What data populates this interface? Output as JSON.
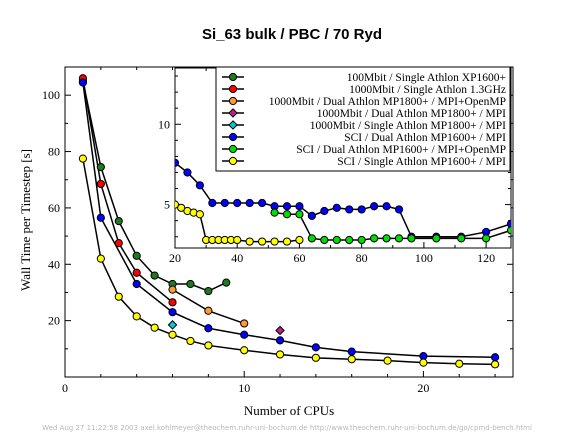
{
  "chart_data": [
    {
      "type": "line",
      "title": "Si_63 bulk / PBC / 70 Ryd",
      "xlabel": "Number of CPUs",
      "ylabel": "Wall Time per Timestep [s]",
      "xlim": [
        0,
        25
      ],
      "ylim": [
        0,
        110
      ],
      "x_ticks": [
        0,
        10,
        20
      ],
      "y_ticks": [
        20,
        40,
        60,
        80,
        100
      ],
      "grid": false,
      "legend_placement": "top-right",
      "series": [
        {
          "name": "100Mbit / Single Athlon XP1600+",
          "color": "#1e7a1e",
          "x": [
            1,
            2,
            3,
            4,
            5,
            6,
            7,
            8,
            9
          ],
          "y": [
            105,
            74.5,
            55.3,
            43,
            36,
            33,
            33,
            30.5,
            33.5
          ]
        },
        {
          "name": "1000Mbit / Single Athlon 1.3GHz",
          "color": "#ff0000",
          "x": [
            1,
            2,
            3,
            4,
            6
          ],
          "y": [
            106,
            68.5,
            47.5,
            37,
            26.5
          ]
        },
        {
          "name": "1000Mbit / Dual Athlon MP1800+ / MPI+OpenMP",
          "color": "#ff9933",
          "x": [
            6,
            8,
            10
          ],
          "y": [
            31,
            23.5,
            19
          ]
        },
        {
          "name": "1000Mbit / Dual Athlon MP1800+ / MPI",
          "color": "#bb2288",
          "x": [
            12
          ],
          "y": [
            16.5
          ]
        },
        {
          "name": "1000Mbit / Single Athlon MP1800+ / MPI",
          "color": "#00cccc",
          "x": [
            6
          ],
          "y": [
            18.5
          ]
        },
        {
          "name": "SCI / Dual Athlon MP1600+ / MPI",
          "color": "#0000ff",
          "x": [
            1,
            2,
            4,
            6,
            8,
            10,
            12,
            14,
            16,
            20,
            24
          ],
          "y": [
            104.5,
            56.5,
            33,
            23,
            17.3,
            15,
            13,
            10.5,
            9,
            7.4,
            7
          ]
        },
        {
          "name": "SCI / Dual Athlon MP1600+ / MPI+OpenMP",
          "color": "#00dd00",
          "x": [],
          "y": []
        },
        {
          "name": "SCI / Single Athlon MP1600+ / MPI",
          "color": "#ffff00",
          "x": [
            1,
            2,
            3,
            4,
            5,
            6,
            7,
            8,
            10,
            12,
            14,
            16,
            18,
            20,
            22,
            24
          ],
          "y": [
            77.5,
            42,
            28.5,
            21.5,
            17.5,
            15,
            12.8,
            11.2,
            9.5,
            8,
            6.8,
            6.3,
            5.8,
            5.1,
            4.7,
            4.5
          ]
        }
      ]
    },
    {
      "type": "line",
      "inset": true,
      "xlim": [
        20,
        128
      ],
      "ylim": [
        2.3,
        13.5
      ],
      "x_ticks": [
        20,
        40,
        60,
        80,
        100,
        120
      ],
      "y_ticks": [
        5,
        10
      ],
      "grid": false,
      "series": [
        {
          "name": "SCI / Dual Athlon MP1600+ / MPI",
          "color": "#0000ff",
          "x": [
            20,
            24,
            28,
            32,
            36,
            40,
            44,
            48,
            52,
            56,
            60,
            64,
            68,
            72,
            76,
            80,
            84,
            88,
            92,
            96,
            104,
            112,
            120,
            128
          ],
          "y": [
            7.6,
            7.0,
            6.2,
            5.1,
            5.1,
            5.1,
            5.1,
            5.1,
            4.9,
            4.9,
            4.9,
            4.3,
            4.6,
            4.8,
            4.7,
            4.7,
            4.9,
            4.9,
            4.7,
            3.0,
            3.0,
            3.0,
            3.3,
            3.8
          ]
        },
        {
          "name": "SCI / Dual Athlon MP1600+ / MPI+OpenMP",
          "color": "#00dd00",
          "x": [
            52,
            56,
            60,
            64,
            68,
            72,
            76,
            80,
            84,
            88,
            92,
            96,
            104,
            112,
            120,
            128
          ],
          "y": [
            4.5,
            4.4,
            4.4,
            2.9,
            2.8,
            2.8,
            2.8,
            2.8,
            2.9,
            2.9,
            2.9,
            2.9,
            2.9,
            2.9,
            2.9,
            3.4
          ]
        },
        {
          "name": "SCI / Single Athlon MP1600+ / MPI",
          "color": "#ffff00",
          "x": [
            20,
            22,
            24,
            26,
            28,
            30,
            32,
            34,
            36,
            38,
            40,
            44,
            48,
            52,
            56,
            60
          ],
          "y": [
            5.0,
            4.8,
            4.6,
            4.5,
            4.4,
            2.8,
            2.8,
            2.8,
            2.8,
            2.8,
            2.8,
            2.7,
            2.7,
            2.7,
            2.7,
            2.8
          ]
        }
      ]
    }
  ],
  "footer": "Wed Aug 27 11:22:58 2003  axel.kohlmeyer@theochem.ruhr-uni-bochum.de  http://www.theochem.ruhr-uni-bochum.de/go/cpmd-bench.html"
}
